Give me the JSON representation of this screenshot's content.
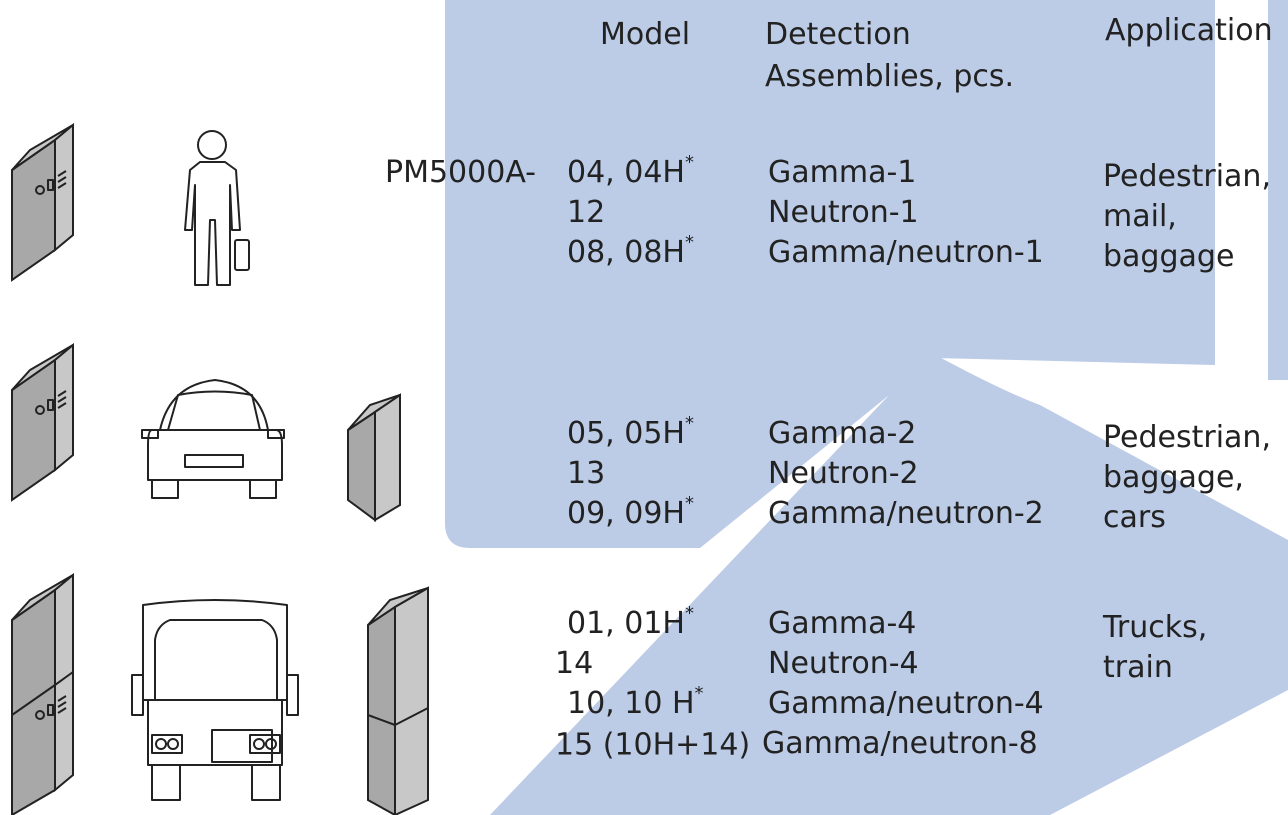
{
  "header": {
    "model": "Model",
    "detection": [
      "Detection",
      "Assemblies, pcs."
    ],
    "application": "Application"
  },
  "prefix": "PM5000A-",
  "groups": [
    {
      "models": [
        {
          "code": "04, 04H",
          "note": "*"
        },
        {
          "code": "12"
        },
        {
          "code": "08, 08H",
          "note": "*"
        }
      ],
      "assemblies": [
        "Gamma-1",
        "Neutron-1",
        "Gamma/neutron-1"
      ],
      "application": [
        "Pedestrian,",
        "mail,",
        "baggage"
      ]
    },
    {
      "models": [
        {
          "code": "05, 05H",
          "note": "*"
        },
        {
          "code": "13"
        },
        {
          "code": "09, 09H",
          "note": "*"
        }
      ],
      "assemblies": [
        "Gamma-2",
        "Neutron-2",
        "Gamma/neutron-2"
      ],
      "application": [
        "Pedestrian,",
        "baggage,",
        "cars"
      ]
    },
    {
      "models": [
        {
          "code": "01, 01H",
          "note": "*"
        },
        {
          "code": "14"
        },
        {
          "code": "10, 10 H",
          "note": "*"
        },
        {
          "code": "15 (10H+14)"
        }
      ],
      "assemblies": [
        "Gamma-4",
        "Neutron-4",
        "Gamma/neutron-4",
        "Gamma/neutron-8"
      ],
      "application": [
        "Trucks,",
        "train"
      ]
    }
  ]
}
